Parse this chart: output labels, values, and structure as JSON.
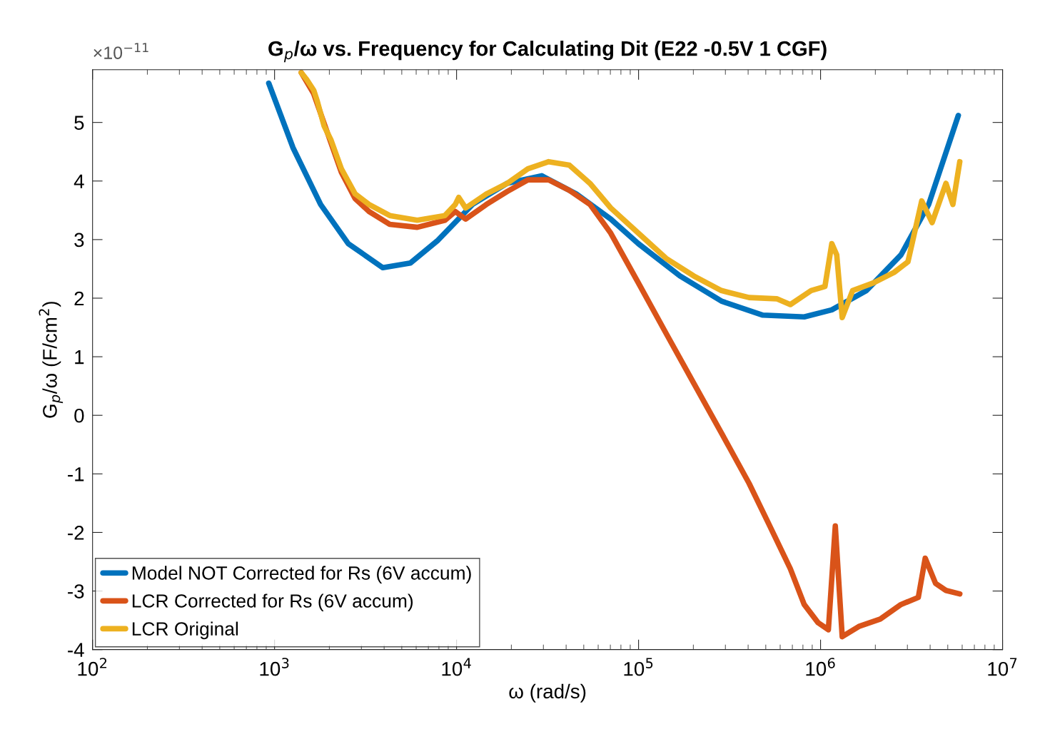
{
  "chart_data": {
    "type": "line",
    "title": "G$_{p}$/ω vs. Frequency for Calculating Dit (E22 -0.5V 1 CGF)",
    "xlabel": "ω (rad/s)",
    "ylabel": "G$_{p}$/ω (F/cm$^{2}$)",
    "annotations": [
      "×10$^{−11}$"
    ],
    "log": "x",
    "xlim": [
      100,
      10000000
    ],
    "ylim": [
      -4,
      5.9
    ],
    "xticks": [
      {
        "value": 100,
        "label": "10$^{2}$"
      },
      {
        "value": 1000,
        "label": "10$^{3}$"
      },
      {
        "value": 10000,
        "label": "10$^{4}$"
      },
      {
        "value": 100000,
        "label": "10$^{5}$"
      },
      {
        "value": 1000000,
        "label": "10$^{6}$"
      },
      {
        "value": 10000000,
        "label": "10$^{7}$"
      }
    ],
    "yticks": [
      -4,
      -3,
      -2,
      -1,
      0,
      1,
      2,
      3,
      4,
      5
    ],
    "grid": false,
    "legend": "bottom left",
    "line_style": "solid",
    "marker": "none",
    "series": [
      {
        "name": "Model NOT Corrected for Rs (6V accum)",
        "color": "#0072bd",
        "x": [
          929,
          1262,
          1791,
          2541,
          3936,
          5575,
          7910,
          12240,
          18950,
          29380,
          45480,
          70340,
          99800,
          168700,
          285100,
          481800,
          813400,
          1153000,
          1786000,
          2767000,
          3926000,
          5715000
        ],
        "values": [
          5.67,
          4.57,
          3.6,
          2.93,
          2.52,
          2.6,
          2.99,
          3.6,
          3.96,
          4.09,
          3.78,
          3.35,
          2.93,
          2.38,
          1.95,
          1.71,
          1.68,
          1.8,
          2.13,
          2.74,
          3.6,
          5.12
        ]
      },
      {
        "name": "LCR Corrected for Rs (6V accum)",
        "color": "#d95319",
        "x": [
          1402,
          1641,
          1954,
          2328,
          2772,
          3303,
          4294,
          6085,
          8630,
          9840,
          11220,
          14590,
          18970,
          24660,
          32060,
          41690,
          54080,
          70310,
          99770,
          141600,
          200900,
          285100,
          404600,
          526000,
          682300,
          812800,
          968300,
          1104000,
          1205000,
          1315000,
          1637000,
          2128000,
          2767000,
          3443000,
          3758000,
          4285000,
          4887000,
          5821000
        ],
        "values": [
          5.85,
          5.49,
          4.82,
          4.15,
          3.7,
          3.48,
          3.26,
          3.21,
          3.33,
          3.48,
          3.35,
          3.6,
          3.82,
          4.02,
          4.02,
          3.84,
          3.6,
          3.11,
          2.26,
          1.4,
          0.55,
          -0.3,
          -1.16,
          -1.89,
          -2.62,
          -3.23,
          -3.54,
          -3.66,
          -1.89,
          -3.78,
          -3.6,
          -3.48,
          -3.23,
          -3.11,
          -2.44,
          -2.87,
          -2.99,
          -3.05
        ]
      },
      {
        "name": "LCR Original",
        "color": "#edb120",
        "x": [
          1402,
          1503,
          1641,
          1714,
          1871,
          2042,
          2328,
          2772,
          3303,
          4294,
          6085,
          8630,
          9840,
          10280,
          11220,
          14590,
          18970,
          24660,
          32060,
          41690,
          54080,
          70310,
          99770,
          141600,
          200900,
          285100,
          404600,
          574100,
          682300,
          887200,
          1057000,
          1153000,
          1227000,
          1315000,
          1500000,
          1950000,
          2535000,
          3020000,
          3597000,
          4102000,
          4887000,
          5333000,
          5821000
        ],
        "values": [
          5.85,
          5.73,
          5.55,
          5.37,
          4.94,
          4.7,
          4.21,
          3.78,
          3.6,
          3.41,
          3.33,
          3.41,
          3.6,
          3.72,
          3.54,
          3.78,
          3.96,
          4.21,
          4.33,
          4.27,
          3.96,
          3.54,
          3.11,
          2.68,
          2.38,
          2.13,
          2.01,
          1.99,
          1.89,
          2.13,
          2.2,
          2.93,
          2.74,
          1.67,
          2.13,
          2.26,
          2.44,
          2.62,
          3.66,
          3.29,
          3.96,
          3.6,
          4.33
        ]
      }
    ]
  }
}
